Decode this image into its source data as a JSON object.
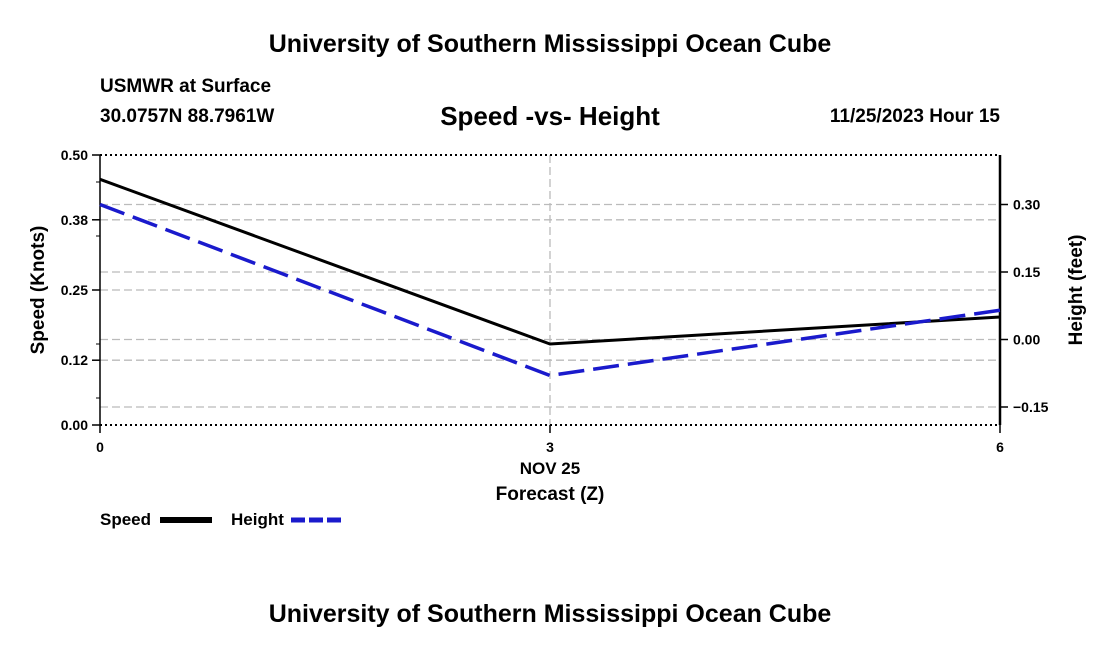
{
  "header": {
    "top_title": "University of Southern Mississippi Ocean Cube",
    "bottom_title": "University of Southern Mississippi Ocean Cube",
    "station": "USMWR at Surface",
    "coords": "30.0757N  88.7961W",
    "timestamp": "11/25/2023 Hour 15"
  },
  "colors": {
    "speed": "#000000",
    "height": "#1a1acc",
    "grid": "#bbbbbb"
  },
  "chart_data": {
    "type": "line",
    "title": "Speed -vs- Height",
    "xlabel": "Forecast (Z)",
    "ylabel": "Speed (Knots)",
    "y2label": "Height (feet)",
    "x": [
      0,
      3,
      6
    ],
    "x_tick_labels": [
      "0",
      "3",
      "6"
    ],
    "x_date_label": "NOV 25",
    "xlim": [
      0,
      6
    ],
    "ylim": [
      0,
      0.5
    ],
    "y_ticks": [
      0.0,
      0.12,
      0.25,
      0.38,
      0.5
    ],
    "y_tick_labels": [
      "0.00",
      "0.12",
      "0.25",
      "0.38",
      "0.50"
    ],
    "y2lim": [
      -0.19,
      0.41
    ],
    "y2_ticks": [
      -0.15,
      0.0,
      0.15,
      0.3
    ],
    "y2_tick_labels": [
      "−0.15",
      "0.00",
      "0.15",
      "0.30"
    ],
    "series": [
      {
        "name": "Speed",
        "axis": "left",
        "style": "solid",
        "values": [
          0.455,
          0.15,
          0.2
        ]
      },
      {
        "name": "Height",
        "axis": "right",
        "style": "dashed",
        "values": [
          0.3,
          -0.08,
          0.065
        ]
      }
    ],
    "legend": {
      "position": "bottom-left",
      "entries": [
        "Speed",
        "Height"
      ]
    }
  }
}
